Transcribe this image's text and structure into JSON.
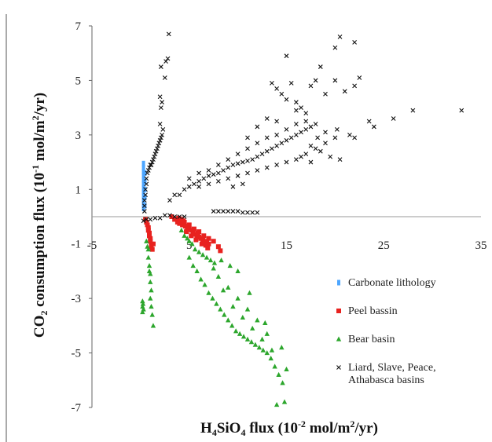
{
  "chart_data": {
    "type": "scatter",
    "title": "",
    "xlabel": "H4SiO4 flux (10-2 mol/m2/yr)",
    "ylabel": "CO2 consumption flux (10-1 mol/m2/yr)",
    "xlim": [
      -5,
      35
    ],
    "ylim": [
      -7,
      7
    ],
    "x_ticks": [
      "-5",
      "5",
      "15",
      "25",
      "35"
    ],
    "y_ticks": [
      "7",
      "5",
      "3",
      "1",
      "-1",
      "-3",
      "-5",
      "-7"
    ],
    "grid": false,
    "legend_position": "lower-right",
    "colors": {
      "carbonate": "#4da6ff",
      "peel": "#e8221f",
      "bear": "#2ca62c",
      "liard": "#111111"
    },
    "series": [
      {
        "name": "Carbonate lithology",
        "marker": "diamond",
        "points": [
          [
            0.3,
            0.3
          ],
          [
            0.3,
            0.45
          ],
          [
            0.3,
            0.6
          ],
          [
            0.3,
            0.75
          ],
          [
            0.3,
            0.9
          ],
          [
            0.3,
            1.05
          ],
          [
            0.3,
            1.2
          ],
          [
            0.3,
            1.35
          ],
          [
            0.3,
            1.5
          ],
          [
            0.3,
            1.65
          ],
          [
            0.3,
            1.8
          ],
          [
            0.3,
            1.95
          ],
          [
            0.45,
            0.4
          ],
          [
            0.45,
            0.7
          ],
          [
            0.45,
            1.0
          ],
          [
            0.45,
            1.3
          ],
          [
            0.45,
            1.6
          ]
        ]
      },
      {
        "name": "Peel bassin",
        "marker": "square",
        "points": [
          [
            0.5,
            -0.1
          ],
          [
            0.6,
            -0.2
          ],
          [
            0.7,
            -0.3
          ],
          [
            0.8,
            -0.4
          ],
          [
            0.9,
            -0.6
          ],
          [
            1.0,
            -0.8
          ],
          [
            1.1,
            -1.0
          ],
          [
            1.2,
            -1.2
          ],
          [
            0.8,
            -0.5
          ],
          [
            0.9,
            -0.7
          ],
          [
            1.0,
            -0.9
          ],
          [
            1.1,
            -1.1
          ],
          [
            1.3,
            -1.0
          ],
          [
            3.2,
            0.0
          ],
          [
            3.5,
            -0.1
          ],
          [
            3.8,
            -0.2
          ],
          [
            4.0,
            -0.25
          ],
          [
            4.3,
            -0.3
          ],
          [
            4.6,
            -0.35
          ],
          [
            4.8,
            -0.4
          ],
          [
            5.0,
            -0.45
          ],
          [
            5.2,
            -0.5
          ],
          [
            5.4,
            -0.6
          ],
          [
            5.6,
            -0.65
          ],
          [
            5.8,
            -0.7
          ],
          [
            6.0,
            -0.75
          ],
          [
            6.2,
            -0.8
          ],
          [
            6.4,
            -0.85
          ],
          [
            6.6,
            -0.9
          ],
          [
            6.8,
            -0.95
          ],
          [
            7.0,
            -1.0
          ],
          [
            4.5,
            -0.2
          ],
          [
            5.0,
            -0.3
          ],
          [
            5.5,
            -0.45
          ],
          [
            6.0,
            -0.55
          ],
          [
            6.5,
            -0.7
          ],
          [
            7.0,
            -0.8
          ],
          [
            7.5,
            -0.9
          ],
          [
            8.0,
            -1.1
          ],
          [
            8.2,
            -1.25
          ],
          [
            4.7,
            -0.55
          ],
          [
            5.2,
            -0.7
          ],
          [
            5.7,
            -0.85
          ],
          [
            6.3,
            -1.0
          ],
          [
            6.9,
            -1.15
          ],
          [
            3.9,
            -0.05
          ],
          [
            4.2,
            -0.1
          ],
          [
            4.4,
            -0.15
          ],
          [
            5.9,
            -0.6
          ],
          [
            6.7,
            -1.05
          ]
        ]
      },
      {
        "name": "Bear basin",
        "marker": "triangle",
        "points": [
          [
            0.2,
            -3.1
          ],
          [
            0.2,
            -3.3
          ],
          [
            0.2,
            -3.5
          ],
          [
            0.25,
            -3.2
          ],
          [
            0.3,
            -3.4
          ],
          [
            0.6,
            -0.9
          ],
          [
            0.7,
            -1.1
          ],
          [
            0.8,
            -1.5
          ],
          [
            0.9,
            -1.8
          ],
          [
            1.0,
            -2.1
          ],
          [
            1.0,
            -2.4
          ],
          [
            1.1,
            -2.7
          ],
          [
            1.0,
            -3.0
          ],
          [
            1.1,
            -3.3
          ],
          [
            1.2,
            -3.6
          ],
          [
            1.3,
            -4.0
          ],
          [
            0.8,
            -1.2
          ],
          [
            0.9,
            -2.0
          ],
          [
            4.2,
            -0.5
          ],
          [
            4.5,
            -0.7
          ],
          [
            4.8,
            -0.8
          ],
          [
            5.0,
            -0.9
          ],
          [
            5.3,
            -1.0
          ],
          [
            5.6,
            -1.2
          ],
          [
            6.0,
            -1.3
          ],
          [
            6.4,
            -1.4
          ],
          [
            6.8,
            -1.5
          ],
          [
            7.2,
            -1.6
          ],
          [
            7.6,
            -1.7
          ],
          [
            5.0,
            -1.5
          ],
          [
            5.4,
            -1.8
          ],
          [
            5.8,
            -2.0
          ],
          [
            6.2,
            -2.3
          ],
          [
            6.6,
            -2.5
          ],
          [
            7.0,
            -2.8
          ],
          [
            7.4,
            -3.0
          ],
          [
            7.8,
            -3.2
          ],
          [
            8.2,
            -3.4
          ],
          [
            8.6,
            -3.6
          ],
          [
            9.0,
            -3.8
          ],
          [
            9.4,
            -4.0
          ],
          [
            9.8,
            -4.2
          ],
          [
            10.2,
            -4.3
          ],
          [
            10.6,
            -4.4
          ],
          [
            11.0,
            -4.5
          ],
          [
            11.4,
            -4.6
          ],
          [
            11.8,
            -4.7
          ],
          [
            12.2,
            -4.8
          ],
          [
            12.6,
            -4.9
          ],
          [
            13.0,
            -5.0
          ],
          [
            13.4,
            -5.2
          ],
          [
            13.8,
            -5.5
          ],
          [
            14.2,
            -5.8
          ],
          [
            14.6,
            -6.1
          ],
          [
            15.0,
            -5.6
          ],
          [
            14.5,
            -4.8
          ],
          [
            13.0,
            -4.3
          ],
          [
            12.0,
            -3.8
          ],
          [
            11.0,
            -3.4
          ],
          [
            10.0,
            -3.0
          ],
          [
            9.0,
            -2.6
          ],
          [
            8.0,
            -2.2
          ],
          [
            7.5,
            -1.9
          ],
          [
            8.5,
            -2.7
          ],
          [
            9.5,
            -3.3
          ],
          [
            10.5,
            -3.7
          ],
          [
            11.5,
            -4.1
          ],
          [
            12.5,
            -4.5
          ],
          [
            13.5,
            -4.9
          ],
          [
            14.0,
            -6.9
          ],
          [
            14.8,
            -6.8
          ],
          [
            9.2,
            -1.8
          ],
          [
            10.0,
            -2.0
          ],
          [
            8.3,
            -1.6
          ],
          [
            11.2,
            -2.8
          ],
          [
            12.8,
            -3.9
          ]
        ]
      },
      {
        "name": "Liard, Slave, Peace, Athabasca basins",
        "marker": "cross",
        "points": [
          [
            0.4,
            0.2
          ],
          [
            0.4,
            0.4
          ],
          [
            0.4,
            0.6
          ],
          [
            0.5,
            0.8
          ],
          [
            0.5,
            1.0
          ],
          [
            0.6,
            1.2
          ],
          [
            0.6,
            1.4
          ],
          [
            0.7,
            1.6
          ],
          [
            0.8,
            1.7
          ],
          [
            0.9,
            1.8
          ],
          [
            1.0,
            1.9
          ],
          [
            1.1,
            1.9
          ],
          [
            1.2,
            2.0
          ],
          [
            1.3,
            2.1
          ],
          [
            1.4,
            2.2
          ],
          [
            1.5,
            2.3
          ],
          [
            1.6,
            2.4
          ],
          [
            1.7,
            2.5
          ],
          [
            1.8,
            2.6
          ],
          [
            1.9,
            2.7
          ],
          [
            2.0,
            2.8
          ],
          [
            2.1,
            2.9
          ],
          [
            2.2,
            3.0
          ],
          [
            2.3,
            3.2
          ],
          [
            2.0,
            3.4
          ],
          [
            2.1,
            4.0
          ],
          [
            2.2,
            4.2
          ],
          [
            2.0,
            4.4
          ],
          [
            2.1,
            5.5
          ],
          [
            2.6,
            5.7
          ],
          [
            2.8,
            5.8
          ],
          [
            2.9,
            6.7
          ],
          [
            2.5,
            5.1
          ],
          [
            0.3,
            -0.15
          ],
          [
            0.6,
            -0.1
          ],
          [
            1.0,
            -0.1
          ],
          [
            1.5,
            -0.05
          ],
          [
            2.0,
            -0.05
          ],
          [
            2.5,
            0.05
          ],
          [
            3.0,
            0.05
          ],
          [
            3.5,
            0.0
          ],
          [
            4.0,
            0.0
          ],
          [
            4.5,
            0.0
          ],
          [
            8.0,
            0.2
          ],
          [
            8.5,
            0.2
          ],
          [
            9.0,
            0.2
          ],
          [
            9.5,
            0.2
          ],
          [
            10.0,
            0.2
          ],
          [
            10.5,
            0.15
          ],
          [
            11.0,
            0.15
          ],
          [
            11.5,
            0.15
          ],
          [
            12.0,
            0.15
          ],
          [
            7.5,
            0.2
          ],
          [
            4.0,
            0.8
          ],
          [
            4.5,
            1.0
          ],
          [
            5.0,
            1.1
          ],
          [
            5.5,
            1.2
          ],
          [
            6.0,
            1.3
          ],
          [
            6.5,
            1.4
          ],
          [
            7.0,
            1.5
          ],
          [
            7.5,
            1.55
          ],
          [
            8.0,
            1.6
          ],
          [
            8.5,
            1.7
          ],
          [
            9.0,
            1.8
          ],
          [
            9.5,
            1.9
          ],
          [
            10.0,
            1.95
          ],
          [
            10.5,
            2.0
          ],
          [
            11.0,
            2.05
          ],
          [
            11.5,
            2.1
          ],
          [
            12.0,
            2.2
          ],
          [
            12.5,
            2.3
          ],
          [
            13.0,
            2.4
          ],
          [
            13.5,
            2.5
          ],
          [
            14.0,
            2.6
          ],
          [
            14.5,
            2.7
          ],
          [
            15.0,
            2.8
          ],
          [
            15.5,
            2.9
          ],
          [
            16.0,
            3.0
          ],
          [
            16.5,
            3.1
          ],
          [
            17.0,
            3.2
          ],
          [
            17.5,
            3.3
          ],
          [
            18.0,
            3.4
          ],
          [
            5.0,
            1.4
          ],
          [
            6.0,
            1.6
          ],
          [
            7.0,
            1.7
          ],
          [
            8.0,
            1.9
          ],
          [
            9.0,
            2.1
          ],
          [
            10.0,
            2.3
          ],
          [
            11.0,
            2.5
          ],
          [
            12.0,
            2.7
          ],
          [
            13.0,
            2.9
          ],
          [
            14.0,
            3.0
          ],
          [
            15.0,
            3.2
          ],
          [
            16.0,
            3.4
          ],
          [
            17.0,
            3.5
          ],
          [
            6.0,
            1.1
          ],
          [
            7.0,
            1.2
          ],
          [
            8.0,
            1.3
          ],
          [
            9.0,
            1.4
          ],
          [
            10.0,
            1.5
          ],
          [
            11.0,
            1.6
          ],
          [
            12.0,
            1.7
          ],
          [
            13.0,
            1.8
          ],
          [
            14.0,
            1.9
          ],
          [
            15.0,
            2.0
          ],
          [
            16.0,
            2.1
          ],
          [
            17.0,
            2.3
          ],
          [
            18.0,
            2.5
          ],
          [
            19.0,
            2.7
          ],
          [
            20.0,
            2.9
          ],
          [
            13.5,
            4.9
          ],
          [
            14.0,
            4.7
          ],
          [
            14.5,
            4.5
          ],
          [
            15.0,
            4.3
          ],
          [
            15.5,
            4.9
          ],
          [
            16.0,
            4.2
          ],
          [
            16.5,
            4.0
          ],
          [
            17.0,
            3.8
          ],
          [
            17.5,
            4.8
          ],
          [
            18.0,
            5.0
          ],
          [
            19.0,
            4.5
          ],
          [
            20.0,
            5.0
          ],
          [
            21.0,
            4.6
          ],
          [
            22.0,
            4.8
          ],
          [
            22.5,
            5.1
          ],
          [
            15.0,
            5.9
          ],
          [
            18.5,
            5.5
          ],
          [
            20.0,
            6.2
          ],
          [
            20.5,
            6.6
          ],
          [
            22.0,
            6.4
          ],
          [
            21.5,
            3.0
          ],
          [
            22.0,
            2.9
          ],
          [
            23.5,
            3.5
          ],
          [
            24.0,
            3.3
          ],
          [
            26.0,
            3.6
          ],
          [
            28.0,
            3.9
          ],
          [
            33.0,
            3.9
          ],
          [
            16.5,
            2.2
          ],
          [
            17.5,
            2.0
          ],
          [
            18.5,
            2.4
          ],
          [
            19.5,
            2.2
          ],
          [
            20.5,
            2.1
          ],
          [
            13.0,
            3.6
          ],
          [
            14.0,
            3.5
          ],
          [
            16.0,
            3.9
          ],
          [
            12.0,
            3.3
          ],
          [
            11.0,
            2.9
          ],
          [
            3.5,
            0.8
          ],
          [
            3.0,
            0.6
          ],
          [
            9.5,
            1.1
          ],
          [
            10.5,
            1.2
          ],
          [
            17.5,
            2.6
          ],
          [
            18.2,
            2.9
          ],
          [
            19.0,
            3.1
          ],
          [
            20.2,
            3.2
          ]
        ]
      }
    ]
  }
}
